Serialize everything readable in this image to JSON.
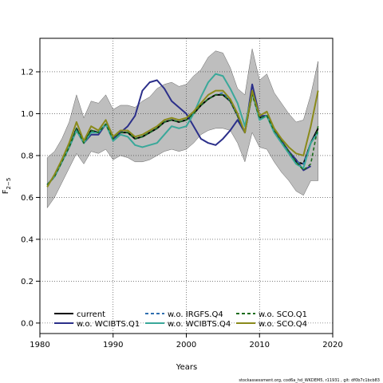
{
  "chart_data": {
    "type": "line",
    "xlabel": "Years",
    "ylabel_main": "F",
    "ylabel_sub": "2−5",
    "xlim": [
      1980,
      2020
    ],
    "ylim": [
      -0.05,
      1.36
    ],
    "xticks": [
      1980,
      1990,
      2000,
      2010,
      2020
    ],
    "yticks": [
      "0.0",
      "0.2",
      "0.4",
      "0.6",
      "0.8",
      "1.0",
      "1.2"
    ],
    "grid": true,
    "legend_position": "bottom-left",
    "x": [
      1981,
      1982,
      1983,
      1984,
      1985,
      1986,
      1987,
      1988,
      1989,
      1990,
      1991,
      1992,
      1993,
      1994,
      1995,
      1996,
      1997,
      1998,
      1999,
      2000,
      2001,
      2002,
      2003,
      2004,
      2005,
      2006,
      2007,
      2008,
      2009,
      2010,
      2011,
      2012,
      2013,
      2014,
      2015,
      2016,
      2017,
      2018
    ],
    "band": {
      "color": "#bebebe",
      "upper": [
        0.79,
        0.82,
        0.88,
        0.96,
        1.09,
        0.98,
        1.06,
        1.05,
        1.09,
        1.02,
        1.04,
        1.04,
        1.03,
        1.06,
        1.08,
        1.12,
        1.14,
        1.15,
        1.13,
        1.14,
        1.18,
        1.21,
        1.27,
        1.3,
        1.29,
        1.22,
        1.12,
        1.09,
        1.31,
        1.16,
        1.19,
        1.1,
        1.05,
        1.0,
        0.96,
        0.97,
        1.09,
        1.25
      ],
      "lower": [
        0.55,
        0.6,
        0.67,
        0.74,
        0.81,
        0.76,
        0.82,
        0.81,
        0.83,
        0.78,
        0.8,
        0.79,
        0.77,
        0.77,
        0.78,
        0.8,
        0.82,
        0.83,
        0.82,
        0.83,
        0.86,
        0.9,
        0.92,
        0.93,
        0.93,
        0.92,
        0.86,
        0.77,
        0.91,
        0.84,
        0.83,
        0.77,
        0.72,
        0.68,
        0.63,
        0.61,
        0.68,
        0.68
      ]
    },
    "series": [
      {
        "name": "current",
        "color": "#000000",
        "dash": "solid",
        "width": 2,
        "values": [
          0.66,
          0.7,
          0.77,
          0.84,
          0.93,
          0.86,
          0.92,
          0.91,
          0.95,
          0.88,
          0.91,
          0.91,
          0.88,
          0.89,
          0.91,
          0.93,
          0.96,
          0.97,
          0.96,
          0.97,
          1.0,
          1.04,
          1.07,
          1.09,
          1.09,
          1.06,
          0.99,
          0.91,
          1.1,
          0.98,
          0.99,
          0.92,
          0.87,
          0.82,
          0.77,
          0.76,
          0.86,
          0.93
        ]
      },
      {
        "name": "w.o. WCIBTS.Q1",
        "color": "#2b2f8a",
        "dash": "solid",
        "width": 2,
        "values": [
          0.66,
          0.7,
          0.77,
          0.84,
          0.92,
          0.86,
          0.9,
          0.9,
          0.95,
          0.88,
          0.91,
          0.94,
          0.99,
          1.11,
          1.15,
          1.16,
          1.12,
          1.06,
          1.03,
          1.0,
          0.94,
          0.88,
          0.86,
          0.85,
          0.88,
          0.92,
          0.97,
          0.91,
          1.14,
          0.99,
          0.99,
          0.92,
          0.87,
          0.82,
          0.78,
          0.73,
          0.75,
          null
        ]
      },
      {
        "name": "w.o. IRGFS.Q4",
        "color": "#2f6fb0",
        "dash": "dashed",
        "width": 1.6,
        "values": [
          0.66,
          0.7,
          0.77,
          0.84,
          0.93,
          0.86,
          0.92,
          0.91,
          0.95,
          0.88,
          0.91,
          0.91,
          0.88,
          0.89,
          0.91,
          0.93,
          0.96,
          0.97,
          0.96,
          0.97,
          1.0,
          1.04,
          1.07,
          1.09,
          1.1,
          1.06,
          0.99,
          0.91,
          1.1,
          0.98,
          0.99,
          0.92,
          0.87,
          0.82,
          0.77,
          0.76,
          0.86,
          0.92
        ]
      },
      {
        "name": "w.o. WCIBTS.Q4",
        "color": "#3aa89a",
        "dash": "solid",
        "width": 2,
        "values": [
          0.66,
          0.7,
          0.77,
          0.84,
          0.92,
          0.86,
          0.91,
          0.91,
          0.95,
          0.87,
          0.9,
          0.89,
          0.85,
          0.84,
          0.85,
          0.86,
          0.9,
          0.94,
          0.93,
          0.94,
          1.0,
          1.08,
          1.15,
          1.19,
          1.18,
          1.12,
          1.05,
          0.94,
          1.1,
          0.97,
          0.99,
          0.91,
          0.86,
          0.81,
          0.76,
          0.74,
          0.86,
          0.91
        ]
      },
      {
        "name": "w.o. SCO.Q1",
        "color": "#1a6b1a",
        "dash": "dashed",
        "width": 1.6,
        "values": [
          0.66,
          0.7,
          0.77,
          0.84,
          0.93,
          0.86,
          0.92,
          0.91,
          0.95,
          0.88,
          0.91,
          0.91,
          0.88,
          0.89,
          0.91,
          0.93,
          0.96,
          0.97,
          0.96,
          0.97,
          1.0,
          1.04,
          1.07,
          1.09,
          1.09,
          1.06,
          0.99,
          0.91,
          1.09,
          0.98,
          0.99,
          0.92,
          0.87,
          0.82,
          0.77,
          0.73,
          0.76,
          0.94
        ]
      },
      {
        "name": "w.o. SCO.Q4",
        "color": "#8a8a1a",
        "dash": "solid",
        "width": 2,
        "values": [
          0.65,
          0.71,
          0.78,
          0.86,
          0.96,
          0.87,
          0.94,
          0.92,
          0.97,
          0.89,
          0.92,
          0.92,
          0.89,
          0.9,
          0.92,
          0.94,
          0.97,
          0.98,
          0.97,
          0.98,
          1.01,
          1.05,
          1.09,
          1.11,
          1.11,
          1.07,
          1.0,
          0.91,
          1.11,
          0.99,
          1.01,
          0.93,
          0.88,
          0.84,
          0.81,
          0.8,
          0.94,
          1.11
        ]
      }
    ]
  },
  "legend": {
    "items": [
      {
        "label": "current",
        "color": "#000000",
        "dash": "solid"
      },
      {
        "label": "w.o. WCIBTS.Q1",
        "color": "#2b2f8a",
        "dash": "solid"
      },
      {
        "label": "w.o. IRGFS.Q4",
        "color": "#2f6fb0",
        "dash": "dashed"
      },
      {
        "label": "w.o. WCIBTS.Q4",
        "color": "#3aa89a",
        "dash": "solid"
      },
      {
        "label": "w.o. SCO.Q1",
        "color": "#1a6b1a",
        "dash": "dashed"
      },
      {
        "label": "w.o. SCO.Q4",
        "color": "#8a8a1a",
        "dash": "solid"
      }
    ]
  },
  "footer": "stockassessment.org, cod6a_hd_WKDEM5, r11931 , git: df0b7c1bcb83"
}
